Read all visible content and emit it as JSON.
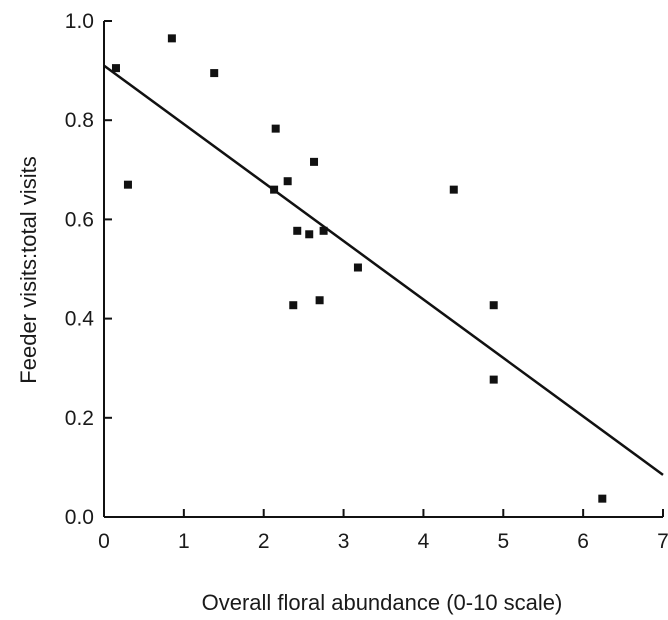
{
  "chart_data": {
    "type": "scatter",
    "title": "",
    "xlabel": "Overall floral abundance (0-10 scale)",
    "ylabel": "Feeder visits:total visits",
    "xlim": [
      0,
      7
    ],
    "ylim": [
      0,
      1.0
    ],
    "xticks": [
      0,
      1,
      2,
      3,
      4,
      5,
      6,
      7
    ],
    "yticks": [
      0.0,
      0.2,
      0.4,
      0.6,
      0.8,
      1.0
    ],
    "xtick_labels": [
      "0",
      "1",
      "2",
      "3",
      "4",
      "5",
      "6",
      "7"
    ],
    "ytick_labels": [
      "0.0",
      "0.2",
      "0.4",
      "0.6",
      "0.8",
      "1.0"
    ],
    "grid": false,
    "colors": {
      "marker": "#111111",
      "line": "#111111",
      "axis": "#111111"
    },
    "series": [
      {
        "marker": "square",
        "x": [
          0.15,
          0.3,
          0.85,
          1.38,
          2.13,
          2.15,
          2.3,
          2.37,
          2.42,
          2.57,
          2.63,
          2.7,
          2.75,
          3.18,
          4.38,
          4.88,
          4.88,
          6.24
        ],
        "y": [
          0.905,
          0.67,
          0.965,
          0.895,
          0.66,
          0.783,
          0.677,
          0.427,
          0.577,
          0.57,
          0.716,
          0.437,
          0.577,
          0.503,
          0.66,
          0.427,
          0.277,
          0.037
        ]
      }
    ],
    "trendline": {
      "x": [
        0,
        7
      ],
      "y": [
        0.91,
        0.085
      ]
    }
  }
}
